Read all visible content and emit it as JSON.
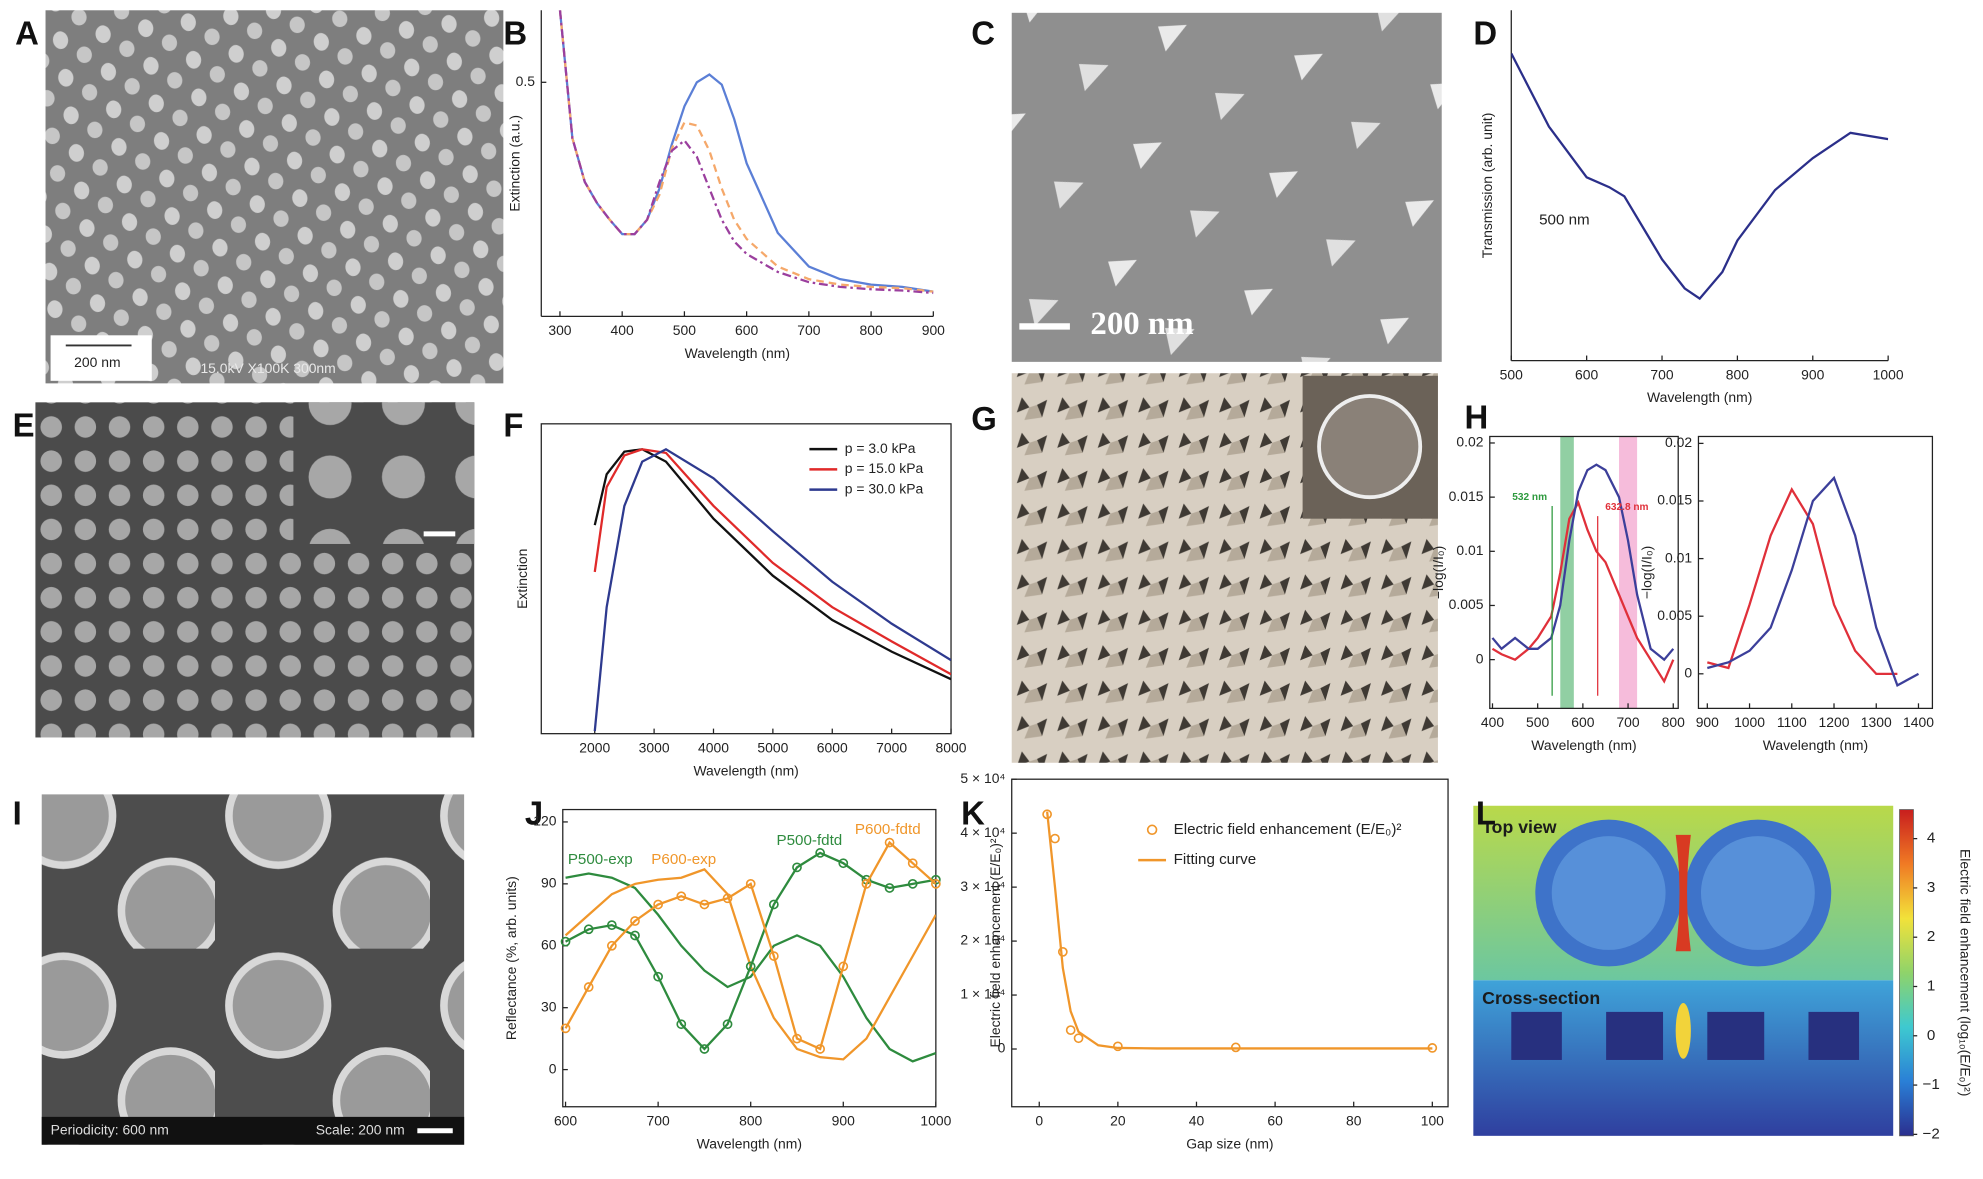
{
  "panel_labels": [
    "A",
    "B",
    "C",
    "D",
    "E",
    "F",
    "G",
    "H",
    "I",
    "J",
    "K",
    "L"
  ],
  "image_texts": {
    "A": [
      "200 nm",
      "15.0kV X100K 300nm"
    ],
    "C": [
      "200 nm"
    ],
    "I": [
      "Periodicity: 600 nm",
      "Scale: 200 nm"
    ],
    "L": [
      "Top view",
      "Cross-section"
    ]
  },
  "chart_data": [
    {
      "type": "line",
      "frame": "open",
      "xlabel": "Wavelength (nm)",
      "ylabel": "Extinction (a.u.)",
      "x": [
        300,
        320,
        340,
        360,
        380,
        400,
        420,
        440,
        460,
        480,
        500,
        520,
        540,
        560,
        580,
        600,
        650,
        700,
        750,
        800,
        850,
        900
      ],
      "series": [
        {
          "color": "#5b7fd6",
          "dash": "solid",
          "values": [
            0.62,
            0.407,
            0.334,
            0.298,
            0.271,
            0.247,
            0.247,
            0.271,
            0.323,
            0.397,
            0.46,
            0.5,
            0.513,
            0.496,
            0.439,
            0.365,
            0.249,
            0.193,
            0.172,
            0.163,
            0.159,
            0.151
          ]
        },
        {
          "color": "#f5a86a",
          "dash": "dashed",
          "values": [
            0.62,
            0.407,
            0.334,
            0.298,
            0.271,
            0.247,
            0.247,
            0.271,
            0.313,
            0.39,
            0.433,
            0.428,
            0.386,
            0.323,
            0.271,
            0.239,
            0.193,
            0.172,
            0.163,
            0.159,
            0.157,
            0.151
          ]
        },
        {
          "color": "#9b3f9e",
          "dash": "dashdot",
          "values": [
            0.62,
            0.407,
            0.334,
            0.298,
            0.271,
            0.247,
            0.247,
            0.271,
            0.334,
            0.386,
            0.403,
            0.376,
            0.323,
            0.271,
            0.235,
            0.214,
            0.184,
            0.167,
            0.159,
            0.155,
            0.153,
            0.149
          ]
        }
      ],
      "xlim": [
        270,
        900
      ],
      "ylim": [
        0.11,
        0.62
      ],
      "xticks": [
        300,
        400,
        500,
        600,
        700,
        800,
        900
      ],
      "yticks": [
        0.5
      ]
    },
    {
      "type": "line",
      "frame": "open",
      "xlabel": "Wavelength (nm)",
      "ylabel": "Transmission (arb. unit)",
      "annotations": [
        {
          "text": "500 nm"
        }
      ],
      "x": [
        500,
        550,
        600,
        630,
        650,
        680,
        700,
        730,
        750,
        780,
        800,
        850,
        900,
        950,
        1000
      ],
      "series": [
        {
          "color": "#2b2f8a",
          "dash": "solid",
          "values": [
            0.877,
            0.668,
            0.523,
            0.495,
            0.469,
            0.361,
            0.289,
            0.206,
            0.177,
            0.253,
            0.343,
            0.487,
            0.578,
            0.65,
            0.632
          ]
        }
      ],
      "xlim": [
        500,
        1000
      ],
      "ylim": [
        0,
        1
      ],
      "xticks": [
        500,
        600,
        700,
        800,
        900,
        1000
      ],
      "yticks": []
    },
    {
      "type": "line",
      "frame": "box",
      "xlabel": "Wavelength (nm)",
      "ylabel": "Extinction",
      "legend": "upper right",
      "x": [
        2000,
        2200,
        2500,
        2800,
        3200,
        4000,
        5000,
        6000,
        7000,
        8000
      ],
      "series": [
        {
          "name": "p = 3.0 kPa",
          "color": "#111111",
          "dash": "solid",
          "values": [
            0.673,
            0.837,
            0.91,
            0.918,
            0.878,
            0.694,
            0.51,
            0.367,
            0.265,
            0.176
          ]
        },
        {
          "name": "p = 15.0 kPa",
          "color": "#e02a2a",
          "dash": "solid",
          "values": [
            0.522,
            0.796,
            0.898,
            0.918,
            0.906,
            0.735,
            0.551,
            0.408,
            0.298,
            0.192
          ]
        },
        {
          "name": "p = 30.0 kPa",
          "color": "#2e3a8f",
          "dash": "solid",
          "values": [
            0.008,
            0.408,
            0.735,
            0.878,
            0.918,
            0.824,
            0.653,
            0.49,
            0.355,
            0.237
          ]
        }
      ],
      "xlim": [
        1100,
        8000
      ],
      "ylim": [
        0,
        1
      ],
      "xticks": [
        2000,
        3000,
        4000,
        5000,
        6000,
        7000,
        8000
      ],
      "yticks": []
    },
    {
      "type": "line",
      "frame": "box",
      "xlabel": "Wavelength (nm)",
      "ylabel": "−log(I/I₀)",
      "bands": [
        {
          "range": [
            550,
            580
          ],
          "color": "#6cbf84"
        },
        {
          "range": [
            680,
            720
          ],
          "color": "#f3a6cf"
        }
      ],
      "annotations": [
        {
          "text": "532 nm",
          "x": 532,
          "color": "#2e9a3e"
        },
        {
          "text": "632.8 nm",
          "x": 632.8,
          "color": "#e0303a"
        }
      ],
      "x": [
        400,
        420,
        450,
        480,
        500,
        530,
        550,
        570,
        590,
        610,
        630,
        650,
        680,
        700,
        720,
        750,
        780,
        800
      ],
      "series": [
        {
          "color": "#e0303a",
          "dash": "solid",
          "values": [
            0.001,
            0.0005,
            0,
            0.001,
            0.002,
            0.004,
            0.008,
            0.013,
            0.0145,
            0.012,
            0.01,
            0.009,
            0.006,
            0.004,
            0.002,
            0,
            -0.002,
            0
          ]
        },
        {
          "color": "#3c3f9a",
          "dash": "solid",
          "values": [
            0.002,
            0.001,
            0.002,
            0.001,
            0.001,
            0.002,
            0.005,
            0.011,
            0.0155,
            0.0175,
            0.018,
            0.0175,
            0.015,
            0.011,
            0.006,
            0.001,
            0,
            0.001
          ]
        }
      ],
      "xlim": [
        394,
        811
      ],
      "ylim": [
        -0.0045,
        0.0206
      ],
      "xticks": [
        400,
        500,
        600,
        700,
        800
      ],
      "yticks": [
        0,
        0.005,
        0.01,
        0.015,
        0.02
      ]
    },
    {
      "type": "line",
      "frame": "box",
      "xlabel": "Wavelength (nm)",
      "ylabel": "−log(I/I₀)",
      "x": [
        900,
        950,
        1000,
        1050,
        1100,
        1150,
        1200,
        1250,
        1300,
        1350,
        1400
      ],
      "series": [
        {
          "color": "#e0303a",
          "dash": "solid",
          "values": [
            0.001,
            0.0005,
            0.006,
            0.012,
            0.016,
            0.013,
            0.006,
            0.002,
            0,
            0,
            null
          ]
        },
        {
          "color": "#3c3f9a",
          "dash": "solid",
          "values": [
            0.0005,
            0.001,
            0.002,
            0.004,
            0.009,
            0.015,
            0.017,
            0.012,
            0.004,
            -0.001,
            0
          ]
        }
      ],
      "xlim": [
        879,
        1433
      ],
      "ylim": [
        -0.003,
        0.0206
      ],
      "xticks": [
        900,
        1000,
        1100,
        1200,
        1300,
        1400
      ],
      "yticks": [
        0,
        0.005,
        0.01,
        0.015,
        0.02
      ]
    },
    {
      "type": "line",
      "frame": "box",
      "xlabel": "Wavelength (nm)",
      "ylabel": "Reflectance (%, arb. units)",
      "x": [
        600,
        625,
        650,
        675,
        700,
        725,
        750,
        775,
        800,
        825,
        850,
        875,
        900,
        925,
        950,
        975,
        1000
      ],
      "series": [
        {
          "name": "P500-exp",
          "color": "#2e8b3e",
          "dash": "solid",
          "mode": "lines",
          "values": [
            93,
            95,
            93,
            88,
            75,
            60,
            48,
            40,
            45,
            60,
            65,
            60,
            45,
            25,
            10,
            4,
            8
          ]
        },
        {
          "name": "P600-exp",
          "color": "#f0962a",
          "dash": "solid",
          "mode": "lines",
          "values": [
            65,
            75,
            85,
            90,
            92,
            93,
            97,
            85,
            50,
            25,
            10,
            6,
            5,
            15,
            35,
            55,
            75
          ]
        },
        {
          "name": "P500-fdtd",
          "color": "#2e8b3e",
          "dash": "solid",
          "mode": "lines+markers",
          "values": [
            62,
            68,
            70,
            65,
            45,
            22,
            10,
            22,
            50,
            80,
            98,
            105,
            100,
            92,
            88,
            90,
            92
          ]
        },
        {
          "name": "P600-fdtd",
          "color": "#f0962a",
          "dash": "solid",
          "mode": "lines+markers",
          "values": [
            20,
            40,
            60,
            72,
            80,
            84,
            80,
            83,
            90,
            55,
            15,
            10,
            50,
            90,
            110,
            100,
            90
          ]
        }
      ],
      "xlim": [
        597,
        1000
      ],
      "ylim": [
        -18,
        126
      ],
      "xticks": [
        600,
        700,
        800,
        900,
        1000
      ],
      "yticks": [
        0,
        30,
        60,
        90,
        120
      ]
    },
    {
      "type": "line",
      "frame": "box",
      "xlabel": "Gap size (nm)",
      "ylabel": "Electric field enhancement (E/E₀)²",
      "legend": "upper right",
      "x": [
        2,
        4,
        6,
        8,
        10,
        15,
        20,
        30,
        50,
        100
      ],
      "series": [
        {
          "name": "Electric field enhancement (E/E₀)²",
          "color": "#f0962a",
          "mode": "markers",
          "values": [
            43500,
            39000,
            18000,
            3500,
            2000,
            null,
            500,
            null,
            300,
            200
          ]
        },
        {
          "name": "Fitting curve",
          "color": "#f0962a",
          "dash": "solid",
          "mode": "lines",
          "values": [
            44000,
            30000,
            15000,
            7000,
            3200,
            700,
            200,
            100,
            100,
            100
          ]
        }
      ],
      "xlim": [
        -7,
        104
      ],
      "ylim": [
        -10700,
        50000
      ],
      "xticks": [
        0,
        20,
        40,
        60,
        80,
        100
      ],
      "yticks": [
        0,
        {
          "value": 10000,
          "label": "1 × 10⁴"
        },
        {
          "value": 20000,
          "label": "2 × 10⁴"
        },
        {
          "value": 30000,
          "label": "3 × 10⁴"
        },
        {
          "value": 40000,
          "label": "4 × 10⁴"
        },
        {
          "value": 50000,
          "label": "5 × 10⁴"
        }
      ]
    },
    {
      "type": "colorbar",
      "ylabel": "Electric field enhancement (log₁₀(E/E₀)²)",
      "colors": [
        "#2b2f8f",
        "#2a7fd6",
        "#3ec9d0",
        "#8fd36a",
        "#f2e23a",
        "#f07a24",
        "#c81e1e"
      ],
      "ylim": [
        -2.03,
        4.59
      ],
      "yticks": [
        {
          "value": -2,
          "label": "−2"
        },
        {
          "value": -1,
          "label": "−1"
        },
        0,
        1,
        2,
        3,
        4
      ]
    }
  ]
}
